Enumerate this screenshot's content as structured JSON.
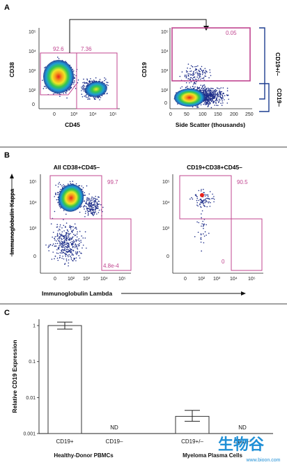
{
  "panels": {
    "a": {
      "letter": "A",
      "left": {
        "xlabel": "CD45",
        "ylabel": "CD38",
        "x_ticks": [
          "0",
          "10³",
          "10⁴",
          "10⁵"
        ],
        "y_ticks": [
          "10⁵",
          "10⁴",
          "10³",
          "10²",
          "0"
        ],
        "gates": [
          "92.6",
          "7.36"
        ]
      },
      "right": {
        "xlabel": "Side Scatter (thousands)",
        "ylabel": "CD19",
        "x_ticks": [
          "0",
          "50",
          "100",
          "150",
          "200",
          "250"
        ],
        "y_ticks": [
          "10⁵",
          "10⁴",
          "10³",
          "10²",
          "0"
        ],
        "gates": [
          "0.05"
        ],
        "bracket_labels": [
          "CD19+/–",
          "CD19–"
        ]
      }
    },
    "b": {
      "letter": "B",
      "xlabel": "Immunoglobulin Lambda",
      "ylabel": "Immunoglobulin Kappa",
      "left": {
        "title": "All CD38+CD45–",
        "x_ticks": [
          "0",
          "10²",
          "10³",
          "10⁴",
          "10⁵"
        ],
        "y_ticks": [
          "10⁵",
          "10⁴",
          "10³",
          "0"
        ],
        "gates": [
          "99.7",
          "4.8e-4"
        ]
      },
      "right": {
        "title": "CD19+CD38+CD45–",
        "x_ticks": [
          "0",
          "10²",
          "10³",
          "10⁴",
          "10⁵"
        ],
        "y_ticks": [
          "10⁵",
          "10⁴",
          "10³",
          "0"
        ],
        "gates": [
          "90.5",
          "0"
        ]
      }
    },
    "c": {
      "letter": "C",
      "groups": [
        "Healthy-Donor PBMCs",
        "Myeloma Plasma Cells"
      ]
    }
  },
  "chart_data": {
    "type": "bar",
    "ylabel": "Relative CD19 Expression",
    "yscale": "log",
    "ylim": [
      0.001,
      1.5
    ],
    "y_ticks": [
      {
        "value": 1,
        "label": "1"
      },
      {
        "value": 0.1,
        "label": "0.1"
      },
      {
        "value": 0.01,
        "label": "0.01"
      },
      {
        "value": 0.001,
        "label": "0.001"
      }
    ],
    "categories": [
      "CD19+",
      "CD19–",
      "CD19+/–",
      "CD19–"
    ],
    "values": [
      1.0,
      null,
      0.003,
      null
    ],
    "error_low": [
      0.8,
      null,
      0.0022,
      null
    ],
    "error_high": [
      1.25,
      null,
      0.0044,
      null
    ],
    "nd_label": "ND",
    "grid": false
  },
  "watermark": {
    "chars": "生物谷",
    "url": "www.bioon.com"
  },
  "colors": {
    "gate": "#c0448f",
    "navy": "#1d3d8f",
    "dot": "#1f2f8a",
    "hot": "#e8221b"
  }
}
